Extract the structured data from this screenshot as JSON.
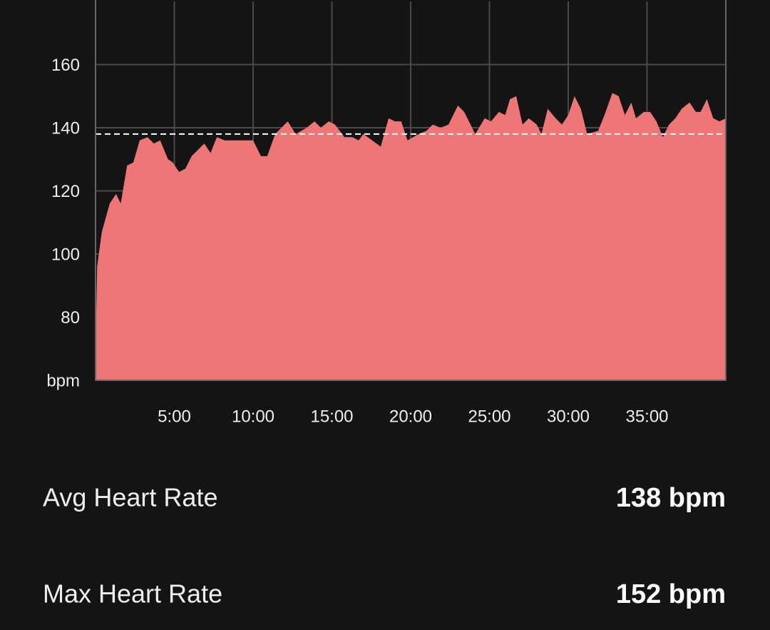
{
  "chart_data": {
    "type": "area",
    "color": "#ef7676",
    "x": [
      0,
      0.1,
      0.4,
      0.9,
      1.3,
      1.6,
      2.0,
      2.4,
      2.8,
      3.3,
      3.7,
      4.1,
      4.6,
      4.9,
      5.3,
      5.7,
      6.1,
      6.5,
      6.9,
      7.3,
      7.7,
      8.2,
      10.0,
      10.5,
      10.9,
      11.4,
      12.2,
      12.7,
      13.4,
      13.9,
      14.3,
      14.8,
      15.2,
      15.8,
      16.3,
      16.7,
      17.0,
      18.1,
      18.6,
      19.0,
      19.4,
      19.8,
      20.5,
      21.0,
      21.4,
      21.9,
      22.4,
      23.0,
      23.4,
      24.1,
      24.7,
      25.1,
      25.6,
      26.0,
      26.3,
      26.7,
      27.1,
      27.5,
      28.0,
      28.3,
      28.7,
      29.2,
      29.6,
      30.0,
      30.4,
      30.8,
      31.2,
      31.9,
      32.3,
      32.8,
      33.2,
      33.6,
      34.0,
      34.3,
      34.8,
      35.2,
      35.6,
      36.0,
      36.4,
      36.8,
      37.2,
      37.7,
      38.1,
      38.4,
      38.8,
      39.2,
      39.6,
      40.0
    ],
    "values": [
      69,
      96,
      107,
      116,
      119,
      116,
      128,
      129,
      136,
      137,
      135,
      136,
      130,
      129,
      126,
      127,
      131,
      133,
      135,
      132,
      137,
      136,
      136,
      131,
      131,
      138,
      142,
      138,
      140,
      142,
      140,
      142,
      141,
      137,
      137,
      136,
      138,
      134,
      143,
      142,
      142,
      136,
      138,
      139,
      141,
      140,
      141,
      147,
      145,
      138,
      143,
      142,
      145,
      144,
      149,
      150,
      141,
      143,
      141,
      138,
      146,
      143,
      141,
      144,
      150,
      146,
      138,
      139,
      144,
      151,
      150,
      144,
      148,
      143,
      145,
      145,
      142,
      137,
      141,
      143,
      146,
      148,
      145,
      145,
      149,
      143,
      142,
      143
    ],
    "reference_line": 138,
    "xlim": [
      0,
      40
    ],
    "xticks": [
      {
        "value": 5,
        "label": "5:00"
      },
      {
        "value": 10,
        "label": "10:00"
      },
      {
        "value": 15,
        "label": "15:00"
      },
      {
        "value": 20,
        "label": "20:00"
      },
      {
        "value": 25,
        "label": "25:00"
      },
      {
        "value": 30,
        "label": "30:00"
      },
      {
        "value": 35,
        "label": "35:00"
      }
    ],
    "ylim": [
      60,
      180
    ],
    "yticks": [
      {
        "value": 60,
        "label": "bpm"
      },
      80,
      100,
      120,
      140,
      160
    ],
    "grid": true
  },
  "stats": [
    {
      "label": "Avg Heart Rate",
      "value": "138 bpm"
    },
    {
      "label": "Max Heart Rate",
      "value": "152 bpm"
    }
  ]
}
